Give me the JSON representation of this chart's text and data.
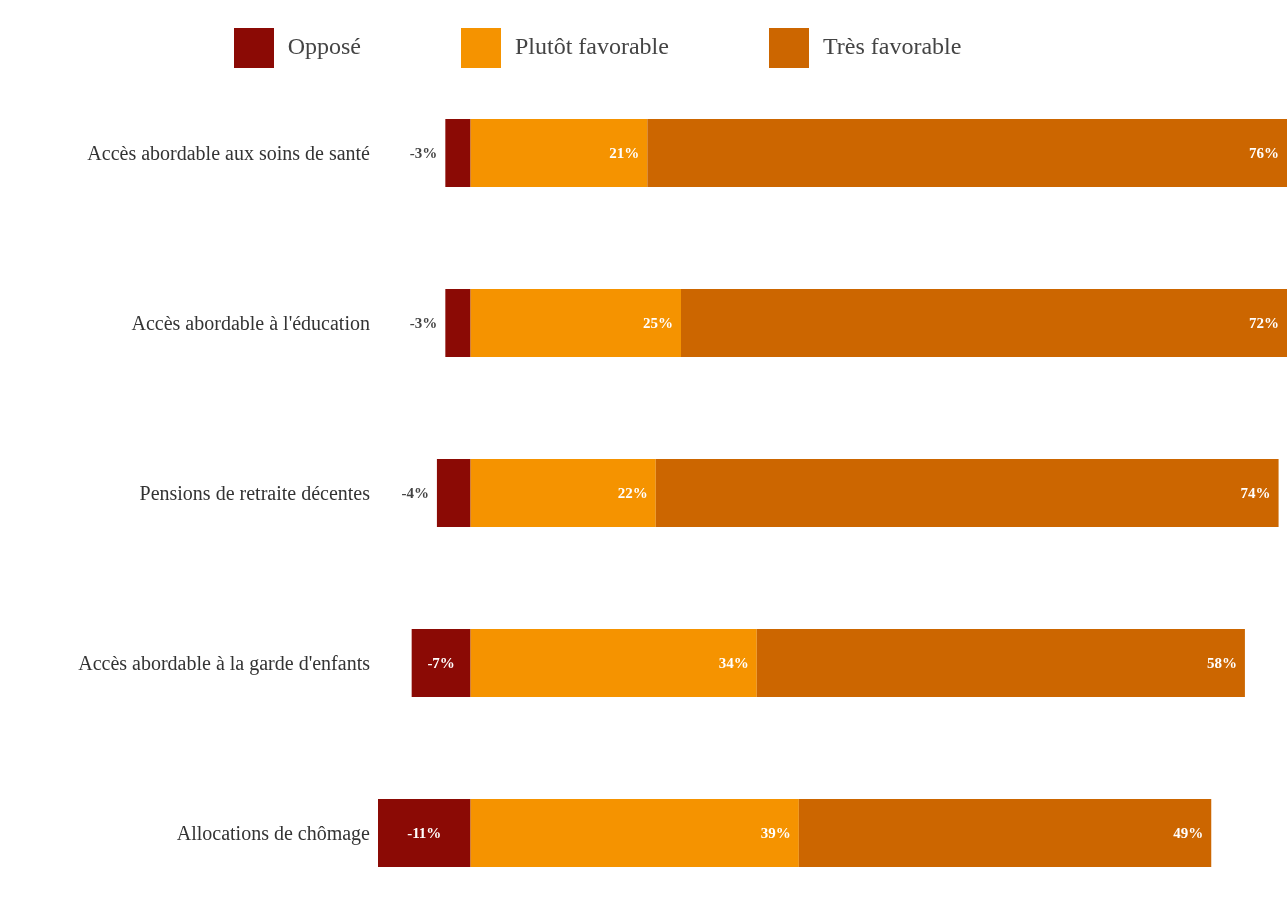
{
  "chart_data": {
    "type": "bar",
    "orientation": "horizontal",
    "stacked": true,
    "legend": "top",
    "categories": [
      "Accès abordable aux soins de santé",
      "Accès abordable à l'éducation",
      "Pensions de retraite décentes",
      "Accès abordable à la garde d'enfants",
      "Allocations de chômage"
    ],
    "series": [
      {
        "name": "Opposé",
        "color": "#8b0a05",
        "values": [
          -3,
          -3,
          -4,
          -7,
          -11
        ],
        "value_labels": [
          "-3%",
          "-3%",
          "-4%",
          "-7%",
          "-11%"
        ]
      },
      {
        "name": "Plutôt favorable",
        "color": "#f59300",
        "values": [
          21,
          25,
          22,
          34,
          39
        ],
        "value_labels": [
          "21%",
          "25%",
          "22%",
          "34%",
          "39%"
        ]
      },
      {
        "name": "Très favorable",
        "color": "#cc6600",
        "values": [
          76,
          72,
          74,
          58,
          49
        ],
        "value_labels": [
          "76%",
          "72%",
          "74%",
          "58%",
          "49%"
        ]
      }
    ]
  }
}
